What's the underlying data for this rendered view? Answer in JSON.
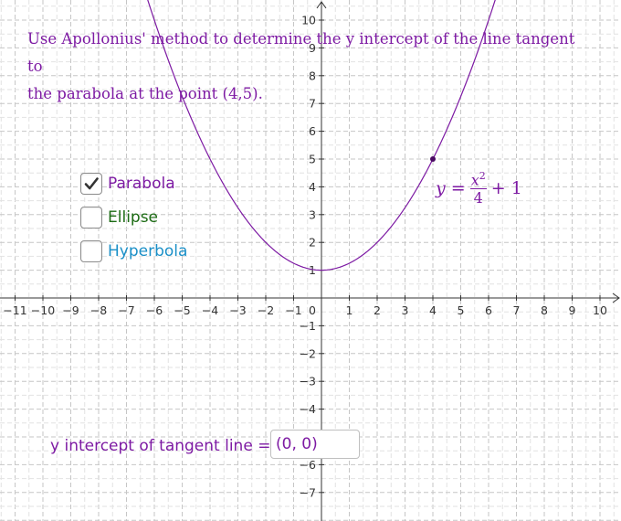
{
  "instruction": {
    "line1": "Use Apollonius' method to determine the y intercept of the line tangent to",
    "line2": "the parabola at the point (4,5)."
  },
  "checkboxes": [
    {
      "label": "Parabola",
      "checked": true,
      "color": "#7d1aa3"
    },
    {
      "label": "Ellipse",
      "checked": false,
      "color": "#1c6b14"
    },
    {
      "label": "Hyperbola",
      "checked": false,
      "color": "#1a8fc7"
    }
  ],
  "equation": {
    "lhs": "y =",
    "num_base": "x",
    "num_exp": "2",
    "den": "4",
    "rest": "+ 1"
  },
  "answer": {
    "label": "y intercept of tangent line =",
    "value": "(0, 0)"
  },
  "chart_data": {
    "type": "line",
    "title": "",
    "xlabel": "",
    "ylabel": "",
    "xlim": [
      -11,
      10
    ],
    "ylim": [
      -7,
      10
    ],
    "grid": true,
    "x_ticks": [
      "−11",
      "−10",
      "−9",
      "−8",
      "−7",
      "−6",
      "−5",
      "−4",
      "−3",
      "−2",
      "−1",
      "0",
      "1",
      "2",
      "3",
      "4",
      "5",
      "6",
      "7",
      "8",
      "9",
      "10"
    ],
    "y_ticks": [
      "10",
      "9",
      "8",
      "7",
      "6",
      "5",
      "4",
      "3",
      "2",
      "1",
      "−1",
      "−2",
      "−3",
      "−4",
      "−5",
      "−6",
      "−7"
    ],
    "series": [
      {
        "equation": "y = x^2/4 + 1",
        "a": 0.25,
        "c": 1,
        "color": "#7d1aa3"
      }
    ],
    "points": [
      {
        "x": 4,
        "y": 5,
        "color": "#4a0b63"
      }
    ]
  }
}
